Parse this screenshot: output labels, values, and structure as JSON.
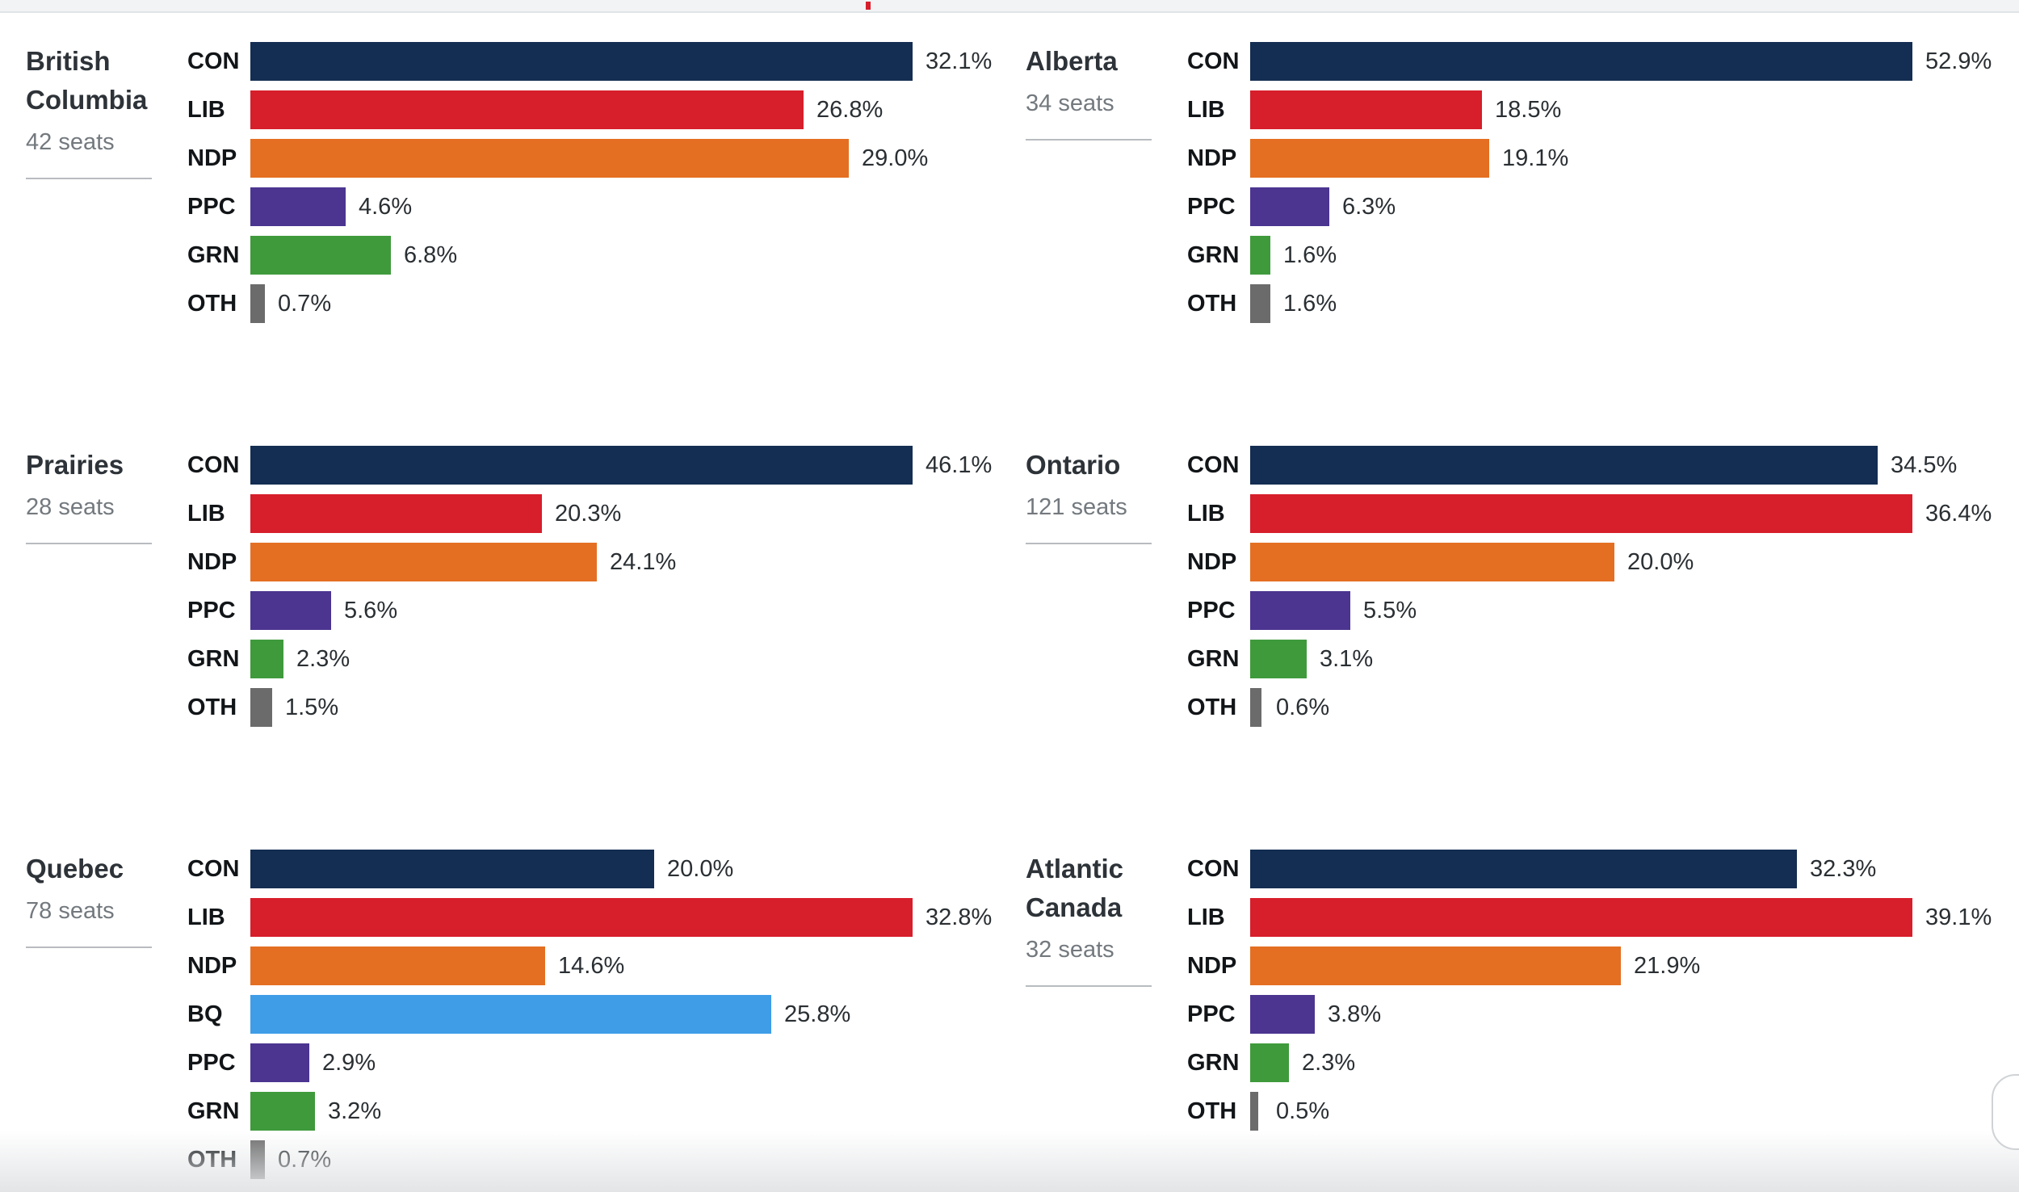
{
  "colors": {
    "CON": "#142d52",
    "LIB": "#d71e2b",
    "NDP": "#e46f22",
    "BQ": "#3f9de8",
    "PPC": "#4b3590",
    "GRN": "#3f9a3c",
    "OTH": "#6b6b6b"
  },
  "chart_data": [
    {
      "type": "bar",
      "orientation": "horizontal",
      "title": "British Columbia",
      "subtitle": "42 seats",
      "categories": [
        "CON",
        "LIB",
        "NDP",
        "PPC",
        "GRN",
        "OTH"
      ],
      "values": [
        32.1,
        26.8,
        29.0,
        4.6,
        6.8,
        0.7
      ],
      "labels": [
        "32.1%",
        "26.8%",
        "29.0%",
        "4.6%",
        "6.8%",
        "0.7%"
      ],
      "xlim": [
        0,
        32.1
      ]
    },
    {
      "type": "bar",
      "orientation": "horizontal",
      "title": "Alberta",
      "subtitle": "34 seats",
      "categories": [
        "CON",
        "LIB",
        "NDP",
        "PPC",
        "GRN",
        "OTH"
      ],
      "values": [
        52.9,
        18.5,
        19.1,
        6.3,
        1.6,
        1.6
      ],
      "labels": [
        "52.9%",
        "18.5%",
        "19.1%",
        "6.3%",
        "1.6%",
        "1.6%"
      ],
      "xlim": [
        0,
        52.9
      ]
    },
    {
      "type": "bar",
      "orientation": "horizontal",
      "title": "Prairies",
      "subtitle": "28 seats",
      "categories": [
        "CON",
        "LIB",
        "NDP",
        "PPC",
        "GRN",
        "OTH"
      ],
      "values": [
        46.1,
        20.3,
        24.1,
        5.6,
        2.3,
        1.5
      ],
      "labels": [
        "46.1%",
        "20.3%",
        "24.1%",
        "5.6%",
        "2.3%",
        "1.5%"
      ],
      "xlim": [
        0,
        46.1
      ]
    },
    {
      "type": "bar",
      "orientation": "horizontal",
      "title": "Ontario",
      "subtitle": "121 seats",
      "categories": [
        "CON",
        "LIB",
        "NDP",
        "PPC",
        "GRN",
        "OTH"
      ],
      "values": [
        34.5,
        36.4,
        20.0,
        5.5,
        3.1,
        0.6
      ],
      "labels": [
        "34.5%",
        "36.4%",
        "20.0%",
        "5.5%",
        "3.1%",
        "0.6%"
      ],
      "xlim": [
        0,
        36.4
      ]
    },
    {
      "type": "bar",
      "orientation": "horizontal",
      "title": "Quebec",
      "subtitle": "78 seats",
      "categories": [
        "CON",
        "LIB",
        "NDP",
        "BQ",
        "PPC",
        "GRN",
        "OTH"
      ],
      "values": [
        20.0,
        32.8,
        14.6,
        25.8,
        2.9,
        3.2,
        0.7
      ],
      "labels": [
        "20.0%",
        "32.8%",
        "14.6%",
        "25.8%",
        "2.9%",
        "3.2%",
        "0.7%"
      ],
      "xlim": [
        0,
        32.8
      ]
    },
    {
      "type": "bar",
      "orientation": "horizontal",
      "title": "Atlantic Canada",
      "subtitle": "32 seats",
      "categories": [
        "CON",
        "LIB",
        "NDP",
        "PPC",
        "GRN",
        "OTH"
      ],
      "values": [
        32.3,
        39.1,
        21.9,
        3.8,
        2.3,
        0.5
      ],
      "labels": [
        "32.3%",
        "39.1%",
        "21.9%",
        "3.8%",
        "2.3%",
        "0.5%"
      ],
      "xlim": [
        0,
        39.1
      ]
    }
  ]
}
